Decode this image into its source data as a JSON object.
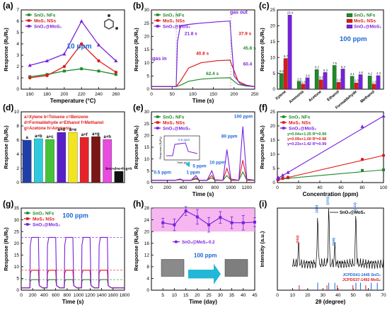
{
  "colors": {
    "sno2": "#1e8a2a",
    "mos2": "#e01818",
    "hybrid": "#7a1fe0",
    "blue": "#1a66d8",
    "cyan": "#22b7d6",
    "pink_band": "#f4a4ec"
  },
  "chart_data": [
    {
      "id": "a",
      "panel_label": "(a)",
      "type": "line",
      "xlabel": "Temperature (°C)",
      "ylabel": "Response (Rₐ/Rₑ)",
      "xlim": [
        150,
        270
      ],
      "ylim": [
        0,
        7
      ],
      "xticks": [
        160,
        180,
        200,
        220,
        240,
        260
      ],
      "yticks": [
        0,
        1,
        2,
        3,
        4,
        5,
        6,
        7
      ],
      "annotation": "10 ppm",
      "legend": [
        "SnO₂ NFs",
        "MoS₂ NSs",
        "SnO₂@MoS₂"
      ],
      "series": [
        {
          "name": "SnO₂ NFs",
          "color_key": "sno2",
          "marker": "square",
          "x": [
            160,
            180,
            200,
            220,
            240,
            260
          ],
          "y": [
            1.1,
            1.3,
            1.6,
            1.8,
            1.6,
            1.3
          ]
        },
        {
          "name": "MoS₂ NSs",
          "color_key": "mos2",
          "marker": "circle",
          "x": [
            160,
            180,
            200,
            220,
            240,
            260
          ],
          "y": [
            1.0,
            1.2,
            2.0,
            4.0,
            2.5,
            1.5
          ]
        },
        {
          "name": "SnO₂@MoS₂",
          "color_key": "hybrid",
          "marker": "triangle",
          "x": [
            160,
            180,
            200,
            220,
            240,
            260
          ],
          "y": [
            2.1,
            2.5,
            3.1,
            6.0,
            3.9,
            2.5
          ]
        }
      ]
    },
    {
      "id": "b",
      "panel_label": "(b)",
      "type": "line",
      "xlabel": "Time (s)",
      "ylabel": "Response (Rₐ/Rₑ)",
      "xlim": [
        0,
        250
      ],
      "ylim": [
        0,
        30
      ],
      "xticks": [
        0,
        50,
        100,
        150,
        200,
        250
      ],
      "yticks": [
        0,
        5,
        10,
        15,
        20,
        25,
        30
      ],
      "legend": [
        "SnO₂ NFs",
        "MoS₂ NSs",
        "SnO₂@MoS₂"
      ],
      "annotations": [
        "gas in",
        "gas out",
        "21.8 s",
        "40.8 s",
        "62.4 s",
        "37.9 s",
        "45.8 s",
        "60.4"
      ],
      "series": [
        {
          "name": "SnO₂ NFs",
          "color_key": "sno2",
          "x": [
            0,
            60,
            70,
            90,
            120,
            160,
            190,
            200,
            210,
            230,
            250
          ],
          "y": [
            1,
            1,
            1.5,
            3,
            3.8,
            4.2,
            4.3,
            3,
            1.8,
            1.2,
            1
          ]
        },
        {
          "name": "MoS₂ NSs",
          "color_key": "mos2",
          "x": [
            0,
            60,
            70,
            90,
            120,
            160,
            190,
            200,
            210,
            230,
            250
          ],
          "y": [
            1,
            1,
            3,
            8,
            10,
            10.8,
            11,
            7,
            3,
            1.5,
            1
          ]
        },
        {
          "name": "SnO₂@MoS₂",
          "color_key": "hybrid",
          "x": [
            0,
            60,
            63,
            70,
            90,
            120,
            160,
            190,
            195,
            200,
            215,
            235,
            250
          ],
          "y": [
            1,
            1,
            18,
            24,
            24.5,
            25,
            25.5,
            25.8,
            15,
            5,
            2,
            1.2,
            1
          ]
        }
      ]
    },
    {
      "id": "c",
      "panel_label": "(c)",
      "type": "bar",
      "xlabel": "",
      "ylabel": "Response (Rₐ/Rₑ)",
      "ylim": [
        0,
        25
      ],
      "yticks": [
        0,
        5,
        10,
        15,
        20,
        25
      ],
      "annotation": "100 ppm",
      "legend": [
        "SnO₂ NFs",
        "MoS₂ NSs",
        "SnO₂@MoS₂"
      ],
      "categories": [
        "Xylene",
        "Ammonia",
        "Acetone",
        "Ethanol",
        "Formaldehyde",
        "Methanol"
      ],
      "series": [
        {
          "name": "SnO₂ NFs",
          "color_key": "sno2",
          "values": [
            5.0,
            2.5,
            6.2,
            7.5,
            4.1,
            4.2
          ]
        },
        {
          "name": "MoS₂ NSs",
          "color_key": "mos2",
          "values": [
            9.7,
            1.6,
            3.0,
            2.2,
            2.0,
            1.6
          ]
        },
        {
          "name": "SnO₂@MoS₂",
          "color_key": "hybrid",
          "values": [
            23.4,
            3.6,
            5.3,
            6.4,
            4.6,
            4.3
          ]
        }
      ],
      "data_labels": [
        "23.4",
        "9.7",
        "4.2",
        "4.1",
        "6.2",
        "5.3",
        "7.5",
        "6.4",
        "4.6",
        "4.3"
      ]
    },
    {
      "id": "d",
      "panel_label": "(d)",
      "type": "bar",
      "ylabel": "Response (Rₐ/Rₑ)",
      "ylim": [
        0,
        10
      ],
      "yticks": [
        0,
        2,
        4,
        6,
        8,
        10
      ],
      "key_lines": [
        "a=Xylene  b=Toluene  c=Benzene",
        "d=Formaldehyde  e=Ethanol  f=Methanol",
        "g=Acetone  h=Ammonia"
      ],
      "categories": [
        "a",
        "a+b",
        "a+c",
        "a+d",
        "a+e",
        "a+f",
        "a+g",
        "a+h",
        "b+c+d+e+f+g+h"
      ],
      "values": [
        6.0,
        6.2,
        6.1,
        7.1,
        7.1,
        6.4,
        6.5,
        6.1,
        1.6
      ],
      "bar_colors": [
        "#1f3fa8",
        "#2ecbe0",
        "#46c23a",
        "#5a1fc6",
        "#f2e41e",
        "#e8222a",
        "#7a1616",
        "#e84be0",
        "#111111"
      ]
    },
    {
      "id": "e",
      "panel_label": "(e)",
      "type": "line",
      "xlabel": "Time (s)",
      "ylabel": "Response (Rₐ/Rₑ)",
      "xlim": [
        0,
        1300
      ],
      "ylim": [
        0,
        30
      ],
      "xticks": [
        0,
        200,
        400,
        600,
        800,
        1000,
        1200
      ],
      "yticks": [
        0,
        5,
        10,
        15,
        20,
        25,
        30
      ],
      "legend": [
        "SnO₂ NFs",
        "MoS₂ NSs",
        "SnO₂@MoS₂"
      ],
      "annotations": [
        "100 ppm",
        "80 ppm",
        "10 ppm",
        "5 ppm",
        "1 ppm",
        "0.5 ppm"
      ],
      "inset": {
        "title": "0.5 ppm",
        "xlabel": "Time (s)",
        "ylabel": "Response (Rₐ/Rₑ)"
      },
      "series": [
        {
          "name": "SnO₂ NFs",
          "color_key": "sno2",
          "x": [
            0,
            100,
            300,
            360,
            400,
            500,
            560,
            600,
            700,
            760,
            800,
            900,
            950,
            1000,
            1100,
            1150,
            1200,
            1300
          ],
          "y": [
            1,
            1,
            1,
            1.2,
            1,
            1,
            1.5,
            1,
            1,
            2,
            1,
            1,
            3,
            1,
            1,
            4.5,
            1,
            1
          ]
        },
        {
          "name": "MoS₂ NSs",
          "color_key": "mos2",
          "x": [
            0,
            100,
            300,
            360,
            400,
            500,
            560,
            600,
            700,
            760,
            800,
            900,
            950,
            1000,
            1100,
            1150,
            1200,
            1300
          ],
          "y": [
            1,
            1,
            1,
            1.3,
            1,
            1,
            2,
            1,
            1,
            3,
            1,
            1,
            6,
            1,
            1,
            9.5,
            1,
            1
          ]
        },
        {
          "name": "SnO₂@MoS₂",
          "color_key": "hybrid",
          "x": [
            0,
            100,
            300,
            360,
            400,
            500,
            560,
            600,
            700,
            760,
            800,
            900,
            950,
            1000,
            1100,
            1150,
            1200,
            1300
          ],
          "y": [
            1,
            1,
            1,
            1.5,
            1,
            1,
            3,
            1,
            1,
            5,
            1.2,
            1,
            14,
            1.5,
            1,
            23.8,
            1.5,
            1
          ]
        }
      ]
    },
    {
      "id": "f",
      "panel_label": "(f)",
      "type": "scatter",
      "xlabel": "Concentration (ppm)",
      "ylabel": "Response (Rₐ/Rₑ)",
      "xlim": [
        0,
        100
      ],
      "ylim": [
        0,
        25
      ],
      "xticks": [
        0,
        20,
        40,
        60,
        80,
        100
      ],
      "yticks": [
        0,
        5,
        10,
        15,
        20,
        25
      ],
      "legend": [
        "SnO₂ NFs",
        "MoS₂ NSs",
        "SnO₂@MoS₂"
      ],
      "fits": [
        "y=0.04x+1.25 R²=0.99",
        "y=0.09x+1.00 R²=0.98",
        "y=0.23x+1.42 R²=0.99"
      ],
      "series": [
        {
          "name": "SnO₂ NFs",
          "color_key": "sno2",
          "x": [
            0.5,
            1,
            5,
            10,
            80,
            100
          ],
          "y": [
            1.2,
            1.3,
            1.5,
            1.7,
            4.3,
            4.5
          ]
        },
        {
          "name": "MoS₂ NSs",
          "color_key": "mos2",
          "x": [
            0.5,
            1,
            5,
            10,
            80,
            100
          ],
          "y": [
            1.0,
            1.1,
            1.5,
            1.9,
            8.2,
            9.6
          ]
        },
        {
          "name": "SnO₂@MoS₂",
          "color_key": "hybrid",
          "x": [
            0.5,
            1,
            5,
            10,
            80,
            100
          ],
          "y": [
            1.5,
            1.7,
            2.6,
            3.6,
            19.8,
            23.5
          ]
        }
      ]
    },
    {
      "id": "g",
      "panel_label": "(g)",
      "type": "line",
      "xlabel": "Time (s)",
      "ylabel": "Response (Rₐ/Rₑ)",
      "xlim": [
        0,
        1800
      ],
      "ylim": [
        0,
        35
      ],
      "xticks": [
        0,
        200,
        400,
        600,
        800,
        1000,
        1200,
        1400,
        1600,
        1800
      ],
      "yticks": [
        0,
        5,
        10,
        15,
        20,
        25,
        30,
        35
      ],
      "annotation": "100 ppm",
      "legend": [
        "SnO₂ NFs",
        "MoS₂ NSs",
        "SnO₂@MoS₂"
      ],
      "cycles": 5,
      "plateau": {
        "SnO₂ NFs": 4.5,
        "MoS₂ NSs": 8.5,
        "SnO₂@MoS₂": 22.5
      }
    },
    {
      "id": "h",
      "panel_label": "(h)",
      "type": "line",
      "xlabel": "Time (day)",
      "ylabel": "Response (Rₐ/Rₑ)",
      "xlim": [
        0,
        45
      ],
      "ylim": [
        0,
        28
      ],
      "xticks": [
        5,
        10,
        15,
        20,
        25,
        30,
        35,
        40,
        45
      ],
      "yticks": [
        0,
        4,
        8,
        12,
        16,
        20,
        24,
        28
      ],
      "legend": [
        "SnO₂@MoS₂-0.2"
      ],
      "annotation": "100 ppm",
      "inset_text": "After 45 days",
      "series": [
        {
          "name": "SnO₂@MoS₂-0.2",
          "color_key": "hybrid",
          "x": [
            5,
            10,
            15,
            20,
            25,
            30,
            35,
            40,
            45
          ],
          "y": [
            23.0,
            22.3,
            27.0,
            25.0,
            22.3,
            24.8,
            23.0,
            23.0,
            23.2
          ],
          "err": [
            1.5,
            2.0,
            1.5,
            2.5,
            2.5,
            2.0,
            2.0,
            2.5,
            1.5
          ]
        }
      ]
    },
    {
      "id": "i",
      "panel_label": "(i)",
      "type": "line",
      "xlabel": "2θ (degree)",
      "ylabel": "Intensity (a.u.)",
      "xlim": [
        0,
        70
      ],
      "xticks": [
        0,
        10,
        20,
        30,
        40,
        50,
        60,
        70
      ],
      "legend": [
        "SnO₂@MoS₂"
      ],
      "peak_labels": [
        {
          "label": "(002)",
          "x": 14
        },
        {
          "label": "(110)",
          "x": 26.6
        },
        {
          "label": "(101)",
          "x": 33.9
        },
        {
          "label": "(200)",
          "x": 37.9
        },
        {
          "label": "(211)",
          "x": 51.8
        }
      ],
      "references": [
        "JCPDS41-1445 SnO₂",
        "JCPDS37-1492 MoS₂"
      ]
    }
  ]
}
